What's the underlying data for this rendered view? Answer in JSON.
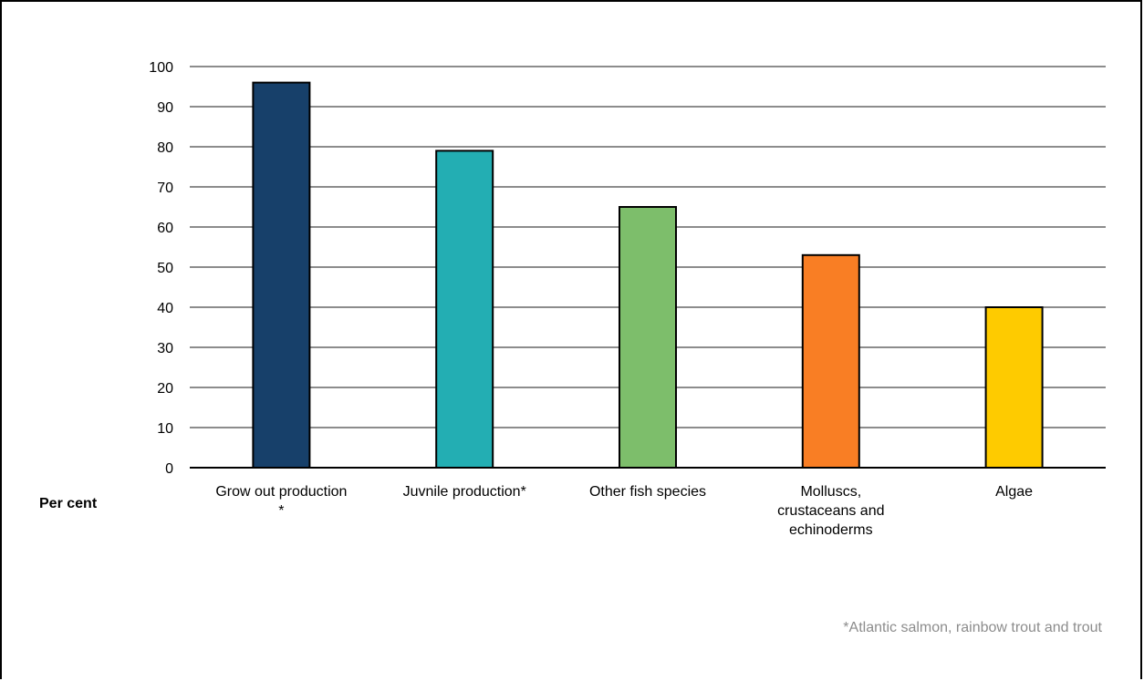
{
  "chart_data": {
    "type": "bar",
    "categories": [
      [
        "Grow out production",
        "*"
      ],
      [
        "Juvnile production*"
      ],
      [
        "Other fish species"
      ],
      [
        "Molluscs,",
        "crustaceans and",
        "echinoderms"
      ],
      [
        "Algae"
      ]
    ],
    "values": [
      96,
      79,
      65,
      53,
      40
    ],
    "colors": [
      "#17406a",
      "#23aeb3",
      "#7dbe6b",
      "#f97e24",
      "#fecb00"
    ],
    "ylabel": "Per cent",
    "ylim": [
      0,
      100
    ],
    "yticks": [
      0,
      10,
      20,
      30,
      40,
      50,
      60,
      70,
      80,
      90,
      100
    ],
    "grid": true,
    "legend": "none",
    "note": "*Atlantic salmon, rainbow trout and trout"
  }
}
